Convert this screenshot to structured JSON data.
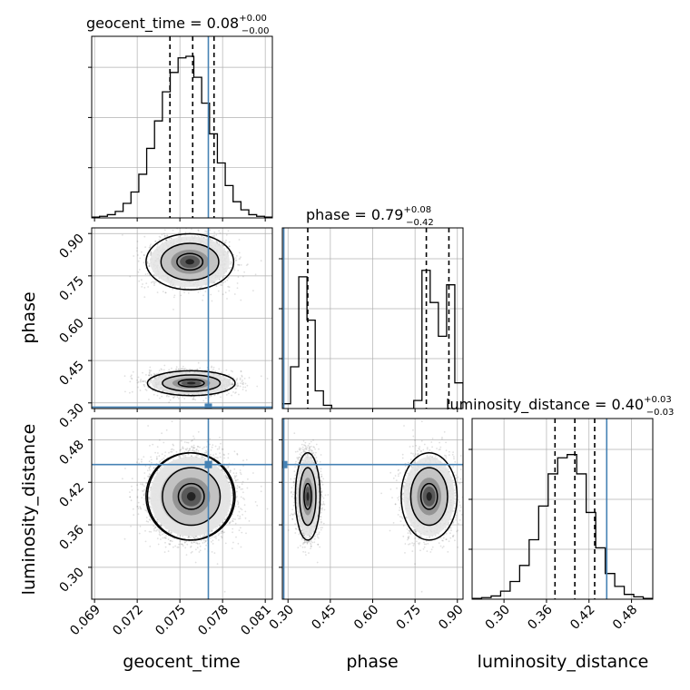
{
  "chart_data": {
    "type": "corner",
    "parameters": [
      "geocent_time",
      "phase",
      "luminosity_distance"
    ],
    "titles": [
      {
        "name": "geocent_time",
        "value": "0.08",
        "plus": "+0.00",
        "minus": "−0.00"
      },
      {
        "name": "phase",
        "value": "0.79",
        "plus": "+0.08",
        "minus": "−0.42"
      },
      {
        "name": "luminosity_distance",
        "value": "0.40",
        "plus": "+0.03",
        "minus": "−0.03"
      }
    ],
    "ranges": {
      "geocent_time": [
        0.0688,
        0.0815
      ],
      "phase": [
        0.28,
        0.92
      ],
      "luminosity_distance": [
        0.255,
        0.51
      ]
    },
    "ticks": {
      "geocent_time": [
        "0.069",
        "0.072",
        "0.075",
        "0.078",
        "0.081"
      ],
      "phase": [
        "0.30",
        "0.45",
        "0.60",
        "0.75",
        "0.90"
      ],
      "luminosity_distance": [
        "0.30",
        "0.36",
        "0.42",
        "0.48"
      ]
    },
    "truths": {
      "geocent_time": 0.077,
      "phase": 0.285,
      "luminosity_distance": 0.445
    },
    "quantiles": {
      "geocent_time": [
        0.0743,
        0.0759,
        0.0774
      ],
      "phase": [
        0.37,
        0.79,
        0.87
      ],
      "luminosity_distance": [
        0.372,
        0.4,
        0.428
      ]
    },
    "histograms": {
      "geocent_time": [
        0.005,
        0.01,
        0.02,
        0.04,
        0.09,
        0.16,
        0.27,
        0.43,
        0.6,
        0.78,
        0.9,
        0.99,
        1.0,
        0.87,
        0.71,
        0.52,
        0.34,
        0.2,
        0.1,
        0.05,
        0.02,
        0.01,
        0.005
      ],
      "phase": [
        0.03,
        0.26,
        0.82,
        0.55,
        0.11,
        0.02,
        0.0,
        0.0,
        0.0,
        0.0,
        0.0,
        0.0,
        0.0,
        0.0,
        0.0,
        0.0,
        0.05,
        0.86,
        0.66,
        0.45,
        0.77,
        0.16
      ],
      "luminosity_distance": [
        0.005,
        0.01,
        0.02,
        0.05,
        0.11,
        0.21,
        0.37,
        0.58,
        0.78,
        0.88,
        0.9,
        0.78,
        0.54,
        0.32,
        0.16,
        0.08,
        0.03,
        0.015,
        0.005
      ]
    },
    "levels": [
      0.39,
      0.86,
      0.99
    ],
    "colors": {
      "truth": "#4682b4",
      "line": "#000000",
      "grid": "#b0b0b0",
      "points": "#555555"
    },
    "grid": true
  }
}
